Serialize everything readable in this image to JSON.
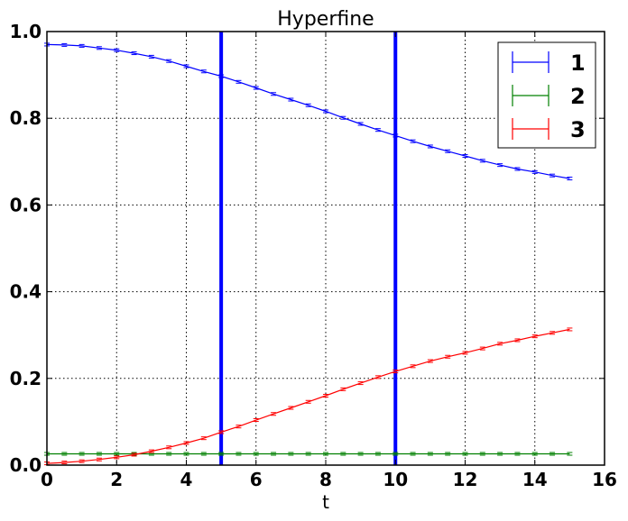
{
  "chart_data": {
    "type": "line",
    "title": "Hyperfine",
    "xlabel": "t",
    "ylabel": "",
    "xlim": [
      0,
      16
    ],
    "ylim": [
      0.0,
      1.0
    ],
    "xticks": [
      "0",
      "2",
      "4",
      "6",
      "8",
      "10",
      "12",
      "14",
      "16"
    ],
    "yticks": [
      "0.0",
      "0.2",
      "0.4",
      "0.6",
      "0.8",
      "1.0"
    ],
    "grid": true,
    "legend_position": "top-right",
    "error_bars": true,
    "vertical_lines": [
      {
        "x": 5,
        "color": "#0000ff"
      },
      {
        "x": 10,
        "color": "#0000ff"
      }
    ],
    "x": [
      0,
      0.5,
      1,
      1.5,
      2,
      2.5,
      3,
      3.5,
      4,
      4.5,
      5,
      5.5,
      6,
      6.5,
      7,
      7.5,
      8,
      8.5,
      9,
      9.5,
      10,
      10.5,
      11,
      11.5,
      12,
      12.5,
      13,
      13.5,
      14,
      14.5,
      15
    ],
    "series": [
      {
        "name": "1",
        "color": "#0000ff",
        "values": [
          0.97,
          0.969,
          0.967,
          0.962,
          0.957,
          0.95,
          0.942,
          0.932,
          0.92,
          0.908,
          0.897,
          0.884,
          0.87,
          0.856,
          0.843,
          0.83,
          0.816,
          0.801,
          0.787,
          0.773,
          0.76,
          0.747,
          0.735,
          0.724,
          0.713,
          0.702,
          0.692,
          0.683,
          0.676,
          0.668,
          0.661
        ]
      },
      {
        "name": "2",
        "color": "#008000",
        "values": [
          0.026,
          0.026,
          0.026,
          0.026,
          0.026,
          0.026,
          0.026,
          0.026,
          0.026,
          0.026,
          0.026,
          0.026,
          0.026,
          0.026,
          0.026,
          0.026,
          0.026,
          0.026,
          0.026,
          0.026,
          0.026,
          0.026,
          0.026,
          0.026,
          0.026,
          0.026,
          0.026,
          0.026,
          0.026,
          0.026,
          0.026
        ]
      },
      {
        "name": "3",
        "color": "#ff0000",
        "values": [
          0.004,
          0.006,
          0.009,
          0.013,
          0.018,
          0.024,
          0.032,
          0.041,
          0.051,
          0.062,
          0.076,
          0.089,
          0.104,
          0.118,
          0.132,
          0.146,
          0.16,
          0.175,
          0.189,
          0.203,
          0.216,
          0.228,
          0.24,
          0.25,
          0.259,
          0.269,
          0.28,
          0.288,
          0.297,
          0.305,
          0.313
        ]
      }
    ]
  }
}
